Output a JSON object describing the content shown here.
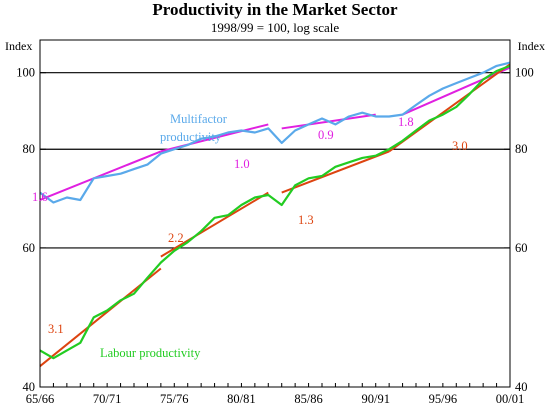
{
  "chart_data": {
    "type": "line",
    "title": "Productivity in the Market Sector",
    "subtitle": "1998/99 = 100, log scale",
    "ylabel_left": "Index",
    "ylabel_right": "Index",
    "y_scale": "log",
    "ylim": [
      40,
      110
    ],
    "y_ticks": [
      40,
      60,
      80,
      100
    ],
    "x_tick_labels": [
      "65/66",
      "70/71",
      "75/76",
      "80/81",
      "85/86",
      "90/91",
      "95/96",
      "00/01"
    ],
    "xlim": [
      "65/66",
      "00/01"
    ],
    "gridlines_at": [
      60,
      80,
      100
    ],
    "colors": {
      "multifactor": "#5aa9ea",
      "labour": "#22cc22",
      "multifactor_trend": "#e020e0",
      "labour_trend": "#dd4410"
    },
    "series": [
      {
        "name": "Multifactor productivity",
        "x": [
          1965,
          1966,
          1967,
          1968,
          1969,
          1970,
          1971,
          1972,
          1973,
          1974,
          1975,
          1976,
          1977,
          1978,
          1979,
          1980,
          1981,
          1982,
          1983,
          1984,
          1985,
          1986,
          1987,
          1988,
          1989,
          1990,
          1991,
          1992,
          1993,
          1994,
          1995,
          1996,
          1997,
          1998,
          1999,
          2000
        ],
        "y": [
          70.5,
          68.5,
          69.5,
          69.0,
          73.5,
          74.0,
          74.5,
          75.5,
          76.5,
          79.0,
          80.0,
          81.0,
          82.5,
          83.0,
          84.0,
          84.5,
          84.0,
          85.0,
          81.5,
          84.5,
          86.0,
          87.5,
          86.0,
          88.0,
          89.0,
          88.0,
          88.0,
          88.5,
          91.0,
          93.5,
          95.5,
          97.0,
          98.5,
          100.0,
          102.0,
          103.0
        ]
      },
      {
        "name": "Labour productivity",
        "x": [
          1965,
          1966,
          1967,
          1968,
          1969,
          1970,
          1971,
          1972,
          1973,
          1974,
          1975,
          1976,
          1977,
          1978,
          1979,
          1980,
          1981,
          1982,
          1983,
          1984,
          1985,
          1986,
          1987,
          1988,
          1989,
          1990,
          1991,
          1992,
          1993,
          1994,
          1995,
          1996,
          1997,
          1998,
          1999,
          2000
        ],
        "y": [
          44.5,
          43.5,
          44.5,
          45.5,
          49.0,
          50.0,
          51.5,
          52.5,
          55.0,
          57.5,
          59.5,
          61.0,
          63.0,
          65.5,
          66.0,
          68.0,
          69.5,
          70.0,
          68.0,
          72.0,
          73.5,
          74.0,
          76.0,
          77.0,
          78.0,
          78.5,
          80.0,
          82.0,
          84.5,
          87.0,
          88.5,
          90.5,
          94.0,
          98.0,
          100.5,
          102.0
        ]
      }
    ],
    "trends": [
      {
        "series": "Multifactor productivity",
        "growth_label": "1.6",
        "x": [
          1965,
          1974
        ],
        "y": [
          69.0,
          79.5
        ]
      },
      {
        "series": "Multifactor productivity",
        "growth_label": "1.0",
        "x": [
          1974,
          1982
        ],
        "y": [
          79.5,
          86.0
        ]
      },
      {
        "series": "Multifactor productivity",
        "growth_label": "0.9",
        "x": [
          1983,
          1990
        ],
        "y": [
          85.0,
          88.5
        ]
      },
      {
        "series": "Multifactor productivity",
        "growth_label": "1.8",
        "x": [
          1992,
          2000
        ],
        "y": [
          88.5,
          101.5
        ]
      },
      {
        "series": "Labour productivity",
        "growth_label": "3.1",
        "x": [
          1965,
          1974
        ],
        "y": [
          42.5,
          56.5
        ]
      },
      {
        "series": "Labour productivity",
        "growth_label": "2.2",
        "x": [
          1974,
          1982
        ],
        "y": [
          58.5,
          70.5
        ]
      },
      {
        "series": "Labour productivity",
        "growth_label": "1.3",
        "x": [
          1983,
          1991
        ],
        "y": [
          70.5,
          79.5
        ]
      },
      {
        "series": "Labour productivity",
        "growth_label": "3.0",
        "x": [
          1991,
          2000
        ],
        "y": [
          79.5,
          102.5
        ]
      }
    ],
    "series_labels": [
      {
        "text": "Multifactor",
        "series": "Multifactor productivity"
      },
      {
        "text": "productivity",
        "series": "Multifactor productivity"
      },
      {
        "text": "Labour productivity",
        "series": "Labour productivity"
      }
    ]
  }
}
